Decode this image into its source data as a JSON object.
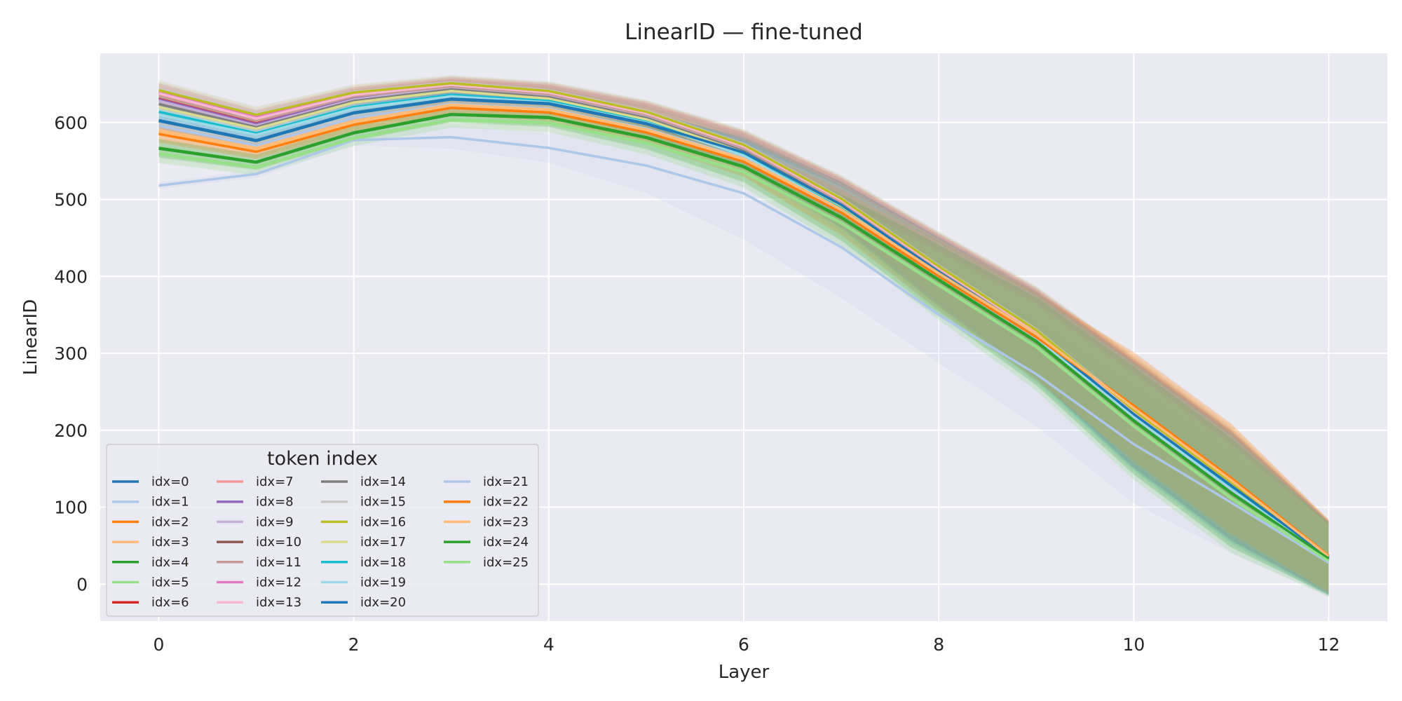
{
  "chart_data": {
    "type": "line",
    "title": "LinearID — fine-tuned",
    "xlabel": "Layer",
    "ylabel": "LinearID",
    "xlim": [
      -0.6,
      12.6
    ],
    "ylim": [
      -48,
      690
    ],
    "xticks": [
      0,
      2,
      4,
      6,
      8,
      10,
      12
    ],
    "yticks": [
      0,
      100,
      200,
      300,
      400,
      500,
      600
    ],
    "grid": true,
    "legend": {
      "title": "token index",
      "placement": "lower-left",
      "columns": 4
    },
    "x": [
      0,
      1,
      2,
      3,
      4,
      5,
      6,
      7,
      8,
      9,
      10,
      11,
      12
    ],
    "series": [
      {
        "name": "idx=0",
        "color": "#1f77b4",
        "values": [
          602,
          576,
          612,
          630,
          624,
          598,
          560,
          492,
          405,
          323,
          220,
          127,
          35
        ],
        "lower": [
          590,
          566,
          602,
          620,
          612,
          583,
          540,
          462,
          360,
          266,
          150,
          56,
          -12
        ],
        "upper": [
          614,
          588,
          622,
          640,
          636,
          613,
          580,
          522,
          450,
          380,
          290,
          198,
          82
        ]
      },
      {
        "name": "idx=1",
        "color": "#aec7e8",
        "values": [
          518,
          533,
          577,
          581,
          567,
          544,
          508,
          438,
          350,
          273,
          182,
          106,
          28
        ],
        "lower": [
          514,
          528,
          570,
          566,
          548,
          508,
          448,
          372,
          288,
          205,
          105,
          40,
          -15
        ],
        "upper": [
          522,
          538,
          584,
          596,
          586,
          580,
          568,
          504,
          412,
          341,
          259,
          172,
          71
        ]
      },
      {
        "name": "idx=2",
        "color": "#ff7f0e",
        "values": [
          586,
          563,
          598,
          620,
          614,
          588,
          550,
          484,
          401,
          322,
          232,
          138,
          37
        ],
        "lower": [
          574,
          553,
          588,
          610,
          602,
          573,
          530,
          454,
          356,
          265,
          162,
          67,
          -10
        ],
        "upper": [
          598,
          573,
          608,
          630,
          626,
          603,
          570,
          514,
          446,
          379,
          302,
          209,
          84
        ]
      },
      {
        "name": "idx=3",
        "color": "#ffbb78",
        "values": [
          588,
          565,
          600,
          622,
          616,
          590,
          552,
          486,
          403,
          325,
          228,
          134,
          36
        ],
        "lower": [
          576,
          555,
          590,
          612,
          604,
          575,
          532,
          456,
          358,
          268,
          158,
          63,
          -11
        ],
        "upper": [
          600,
          575,
          610,
          632,
          628,
          605,
          572,
          516,
          448,
          382,
          298,
          205,
          83
        ]
      },
      {
        "name": "idx=4",
        "color": "#2ca02c",
        "values": [
          566,
          548,
          586,
          610,
          606,
          580,
          542,
          476,
          395,
          315,
          212,
          118,
          33
        ],
        "lower": [
          554,
          538,
          576,
          600,
          594,
          565,
          522,
          446,
          350,
          258,
          142,
          47,
          -14
        ],
        "upper": [
          578,
          558,
          596,
          620,
          618,
          595,
          562,
          506,
          440,
          372,
          282,
          189,
          80
        ]
      },
      {
        "name": "idx=5",
        "color": "#98df8a",
        "values": [
          560,
          542,
          580,
          604,
          600,
          574,
          536,
          470,
          389,
          309,
          206,
          112,
          31
        ],
        "lower": [
          548,
          532,
          570,
          594,
          588,
          559,
          516,
          440,
          344,
          252,
          136,
          41,
          -16
        ],
        "upper": [
          572,
          552,
          590,
          614,
          612,
          589,
          556,
          500,
          434,
          366,
          276,
          183,
          78
        ]
      },
      {
        "name": "idx=6",
        "color": "#d62728",
        "values": [
          632,
          600,
          633,
          647,
          637,
          610,
          567,
          497,
          409,
          326,
          222,
          128,
          34
        ],
        "lower": [
          620,
          590,
          623,
          637,
          625,
          595,
          547,
          467,
          364,
          269,
          152,
          57,
          -13
        ],
        "upper": [
          644,
          610,
          643,
          657,
          649,
          625,
          587,
          527,
          454,
          383,
          292,
          199,
          81
        ]
      },
      {
        "name": "idx=7",
        "color": "#ff9896",
        "values": [
          636,
          604,
          635,
          648,
          638,
          611,
          568,
          498,
          410,
          327,
          223,
          129,
          34
        ],
        "lower": [
          624,
          594,
          625,
          638,
          626,
          596,
          548,
          468,
          365,
          270,
          153,
          58,
          -13
        ],
        "upper": [
          648,
          614,
          645,
          658,
          650,
          626,
          588,
          528,
          455,
          384,
          293,
          200,
          81
        ]
      },
      {
        "name": "idx=8",
        "color": "#9467bd",
        "values": [
          630,
          598,
          632,
          646,
          636,
          609,
          566,
          496,
          408,
          325,
          221,
          127,
          33
        ],
        "lower": [
          618,
          588,
          622,
          636,
          624,
          594,
          546,
          466,
          363,
          268,
          151,
          56,
          -14
        ],
        "upper": [
          642,
          608,
          642,
          656,
          648,
          624,
          586,
          526,
          453,
          382,
          291,
          198,
          80
        ]
      },
      {
        "name": "idx=9",
        "color": "#c5b0d5",
        "values": [
          628,
          596,
          630,
          645,
          635,
          608,
          565,
          495,
          407,
          324,
          220,
          126,
          33
        ],
        "lower": [
          616,
          586,
          620,
          635,
          623,
          593,
          545,
          465,
          362,
          267,
          150,
          55,
          -14
        ],
        "upper": [
          640,
          606,
          640,
          655,
          647,
          623,
          585,
          525,
          452,
          381,
          290,
          197,
          80
        ]
      },
      {
        "name": "idx=10",
        "color": "#8c564b",
        "values": [
          639,
          606,
          636,
          649,
          639,
          612,
          569,
          499,
          411,
          328,
          224,
          130,
          35
        ],
        "lower": [
          627,
          596,
          626,
          639,
          627,
          597,
          549,
          469,
          366,
          271,
          154,
          59,
          -12
        ],
        "upper": [
          651,
          616,
          646,
          659,
          651,
          627,
          589,
          529,
          456,
          385,
          294,
          201,
          82
        ]
      },
      {
        "name": "idx=11",
        "color": "#c49c94",
        "values": [
          634,
          602,
          634,
          647,
          637,
          610,
          567,
          497,
          409,
          326,
          222,
          128,
          34
        ],
        "lower": [
          622,
          592,
          624,
          637,
          625,
          595,
          547,
          467,
          364,
          269,
          152,
          57,
          -13
        ],
        "upper": [
          646,
          612,
          644,
          657,
          649,
          625,
          587,
          527,
          454,
          383,
          292,
          199,
          81
        ]
      },
      {
        "name": "idx=12",
        "color": "#e377c2",
        "values": [
          640,
          607,
          637,
          650,
          640,
          613,
          570,
          500,
          412,
          329,
          225,
          131,
          35
        ],
        "lower": [
          628,
          597,
          627,
          640,
          628,
          598,
          550,
          470,
          367,
          272,
          155,
          60,
          -12
        ],
        "upper": [
          652,
          617,
          647,
          660,
          652,
          628,
          590,
          530,
          457,
          386,
          295,
          202,
          82
        ]
      },
      {
        "name": "idx=13",
        "color": "#f7b6d2",
        "values": [
          638,
          605,
          636,
          649,
          639,
          612,
          569,
          499,
          411,
          328,
          224,
          130,
          35
        ],
        "lower": [
          626,
          595,
          626,
          639,
          627,
          597,
          549,
          469,
          366,
          271,
          154,
          59,
          -12
        ],
        "upper": [
          650,
          615,
          646,
          659,
          651,
          627,
          589,
          529,
          456,
          385,
          294,
          201,
          82
        ]
      },
      {
        "name": "idx=14",
        "color": "#7f7f7f",
        "values": [
          624,
          594,
          628,
          643,
          633,
          606,
          563,
          493,
          405,
          322,
          218,
          124,
          32
        ],
        "lower": [
          612,
          584,
          618,
          633,
          621,
          591,
          543,
          463,
          360,
          265,
          148,
          53,
          -15
        ],
        "upper": [
          636,
          604,
          638,
          653,
          645,
          621,
          583,
          523,
          450,
          379,
          288,
          195,
          79
        ]
      },
      {
        "name": "idx=15",
        "color": "#c7c7c7",
        "values": [
          644,
          611,
          640,
          652,
          642,
          615,
          572,
          502,
          414,
          331,
          227,
          133,
          36
        ],
        "lower": [
          632,
          601,
          630,
          642,
          630,
          600,
          552,
          472,
          369,
          274,
          157,
          62,
          -11
        ],
        "upper": [
          656,
          621,
          650,
          662,
          654,
          630,
          592,
          532,
          459,
          388,
          297,
          204,
          83
        ]
      },
      {
        "name": "idx=16",
        "color": "#bcbd22",
        "values": [
          642,
          610,
          639,
          651,
          641,
          614,
          571,
          501,
          413,
          330,
          226,
          132,
          36
        ],
        "lower": [
          630,
          600,
          629,
          641,
          629,
          599,
          551,
          471,
          368,
          273,
          156,
          61,
          -11
        ],
        "upper": [
          654,
          620,
          649,
          661,
          653,
          629,
          591,
          531,
          458,
          387,
          296,
          203,
          83
        ]
      },
      {
        "name": "idx=17",
        "color": "#dbdb8d",
        "values": [
          620,
          592,
          626,
          641,
          631,
          604,
          561,
          491,
          403,
          320,
          216,
          122,
          32
        ],
        "lower": [
          608,
          582,
          616,
          631,
          619,
          589,
          541,
          461,
          358,
          263,
          146,
          51,
          -15
        ],
        "upper": [
          632,
          602,
          636,
          651,
          643,
          619,
          581,
          521,
          448,
          377,
          286,
          193,
          79
        ]
      },
      {
        "name": "idx=18",
        "color": "#17becf",
        "values": [
          614,
          586,
          620,
          636,
          628,
          601,
          558,
          488,
          401,
          320,
          218,
          124,
          32
        ],
        "lower": [
          602,
          576,
          610,
          626,
          616,
          586,
          538,
          458,
          356,
          263,
          148,
          53,
          -15
        ],
        "upper": [
          626,
          596,
          630,
          646,
          640,
          616,
          578,
          518,
          446,
          377,
          288,
          195,
          79
        ]
      },
      {
        "name": "idx=19",
        "color": "#9edae5",
        "values": [
          610,
          584,
          618,
          634,
          626,
          600,
          557,
          487,
          400,
          319,
          217,
          123,
          32
        ],
        "lower": [
          598,
          574,
          608,
          624,
          614,
          585,
          537,
          457,
          355,
          262,
          147,
          52,
          -15
        ],
        "upper": [
          622,
          594,
          628,
          644,
          638,
          615,
          577,
          517,
          445,
          376,
          287,
          194,
          79
        ]
      },
      {
        "name": "idx=20",
        "color": "#1f77b4",
        "values": [
          603,
          577,
          613,
          631,
          625,
          599,
          561,
          493,
          406,
          324,
          221,
          128,
          35
        ],
        "lower": [
          591,
          567,
          603,
          621,
          613,
          584,
          541,
          463,
          361,
          267,
          151,
          57,
          -12
        ],
        "upper": [
          615,
          587,
          623,
          641,
          637,
          614,
          581,
          523,
          451,
          381,
          291,
          199,
          82
        ]
      },
      {
        "name": "idx=21",
        "color": "#aec7e8",
        "values": [
          596,
          570,
          606,
          624,
          618,
          592,
          554,
          486,
          399,
          317,
          214,
          121,
          30
        ],
        "lower": [
          584,
          560,
          596,
          614,
          606,
          577,
          534,
          456,
          354,
          260,
          144,
          50,
          -17
        ],
        "upper": [
          608,
          580,
          616,
          634,
          630,
          607,
          574,
          516,
          444,
          374,
          284,
          192,
          77
        ]
      },
      {
        "name": "idx=22",
        "color": "#ff7f0e",
        "values": [
          585,
          562,
          597,
          619,
          613,
          587,
          549,
          483,
          400,
          321,
          231,
          137,
          37
        ],
        "lower": [
          573,
          552,
          587,
          609,
          601,
          572,
          529,
          453,
          355,
          264,
          161,
          66,
          -10
        ],
        "upper": [
          597,
          572,
          607,
          629,
          625,
          602,
          569,
          513,
          445,
          378,
          301,
          208,
          84
        ]
      },
      {
        "name": "idx=23",
        "color": "#ffbb78",
        "values": [
          590,
          567,
          602,
          623,
          617,
          591,
          553,
          487,
          404,
          325,
          229,
          135,
          36
        ],
        "lower": [
          578,
          557,
          592,
          613,
          605,
          576,
          533,
          457,
          359,
          268,
          159,
          64,
          -11
        ],
        "upper": [
          602,
          577,
          612,
          633,
          629,
          606,
          573,
          517,
          449,
          382,
          299,
          206,
          83
        ]
      },
      {
        "name": "idx=24",
        "color": "#2ca02c",
        "values": [
          567,
          549,
          587,
          611,
          607,
          581,
          543,
          477,
          396,
          316,
          213,
          119,
          33
        ],
        "lower": [
          555,
          539,
          577,
          601,
          595,
          566,
          523,
          447,
          351,
          259,
          143,
          48,
          -14
        ],
        "upper": [
          579,
          559,
          597,
          621,
          619,
          596,
          563,
          507,
          441,
          373,
          283,
          190,
          80
        ]
      },
      {
        "name": "idx=25",
        "color": "#98df8a",
        "values": [
          559,
          541,
          579,
          603,
          599,
          573,
          535,
          469,
          388,
          308,
          205,
          111,
          30
        ],
        "lower": [
          547,
          531,
          569,
          593,
          587,
          558,
          515,
          439,
          343,
          251,
          135,
          40,
          -17
        ],
        "upper": [
          571,
          551,
          589,
          613,
          611,
          588,
          555,
          499,
          433,
          365,
          275,
          182,
          77
        ]
      }
    ]
  }
}
